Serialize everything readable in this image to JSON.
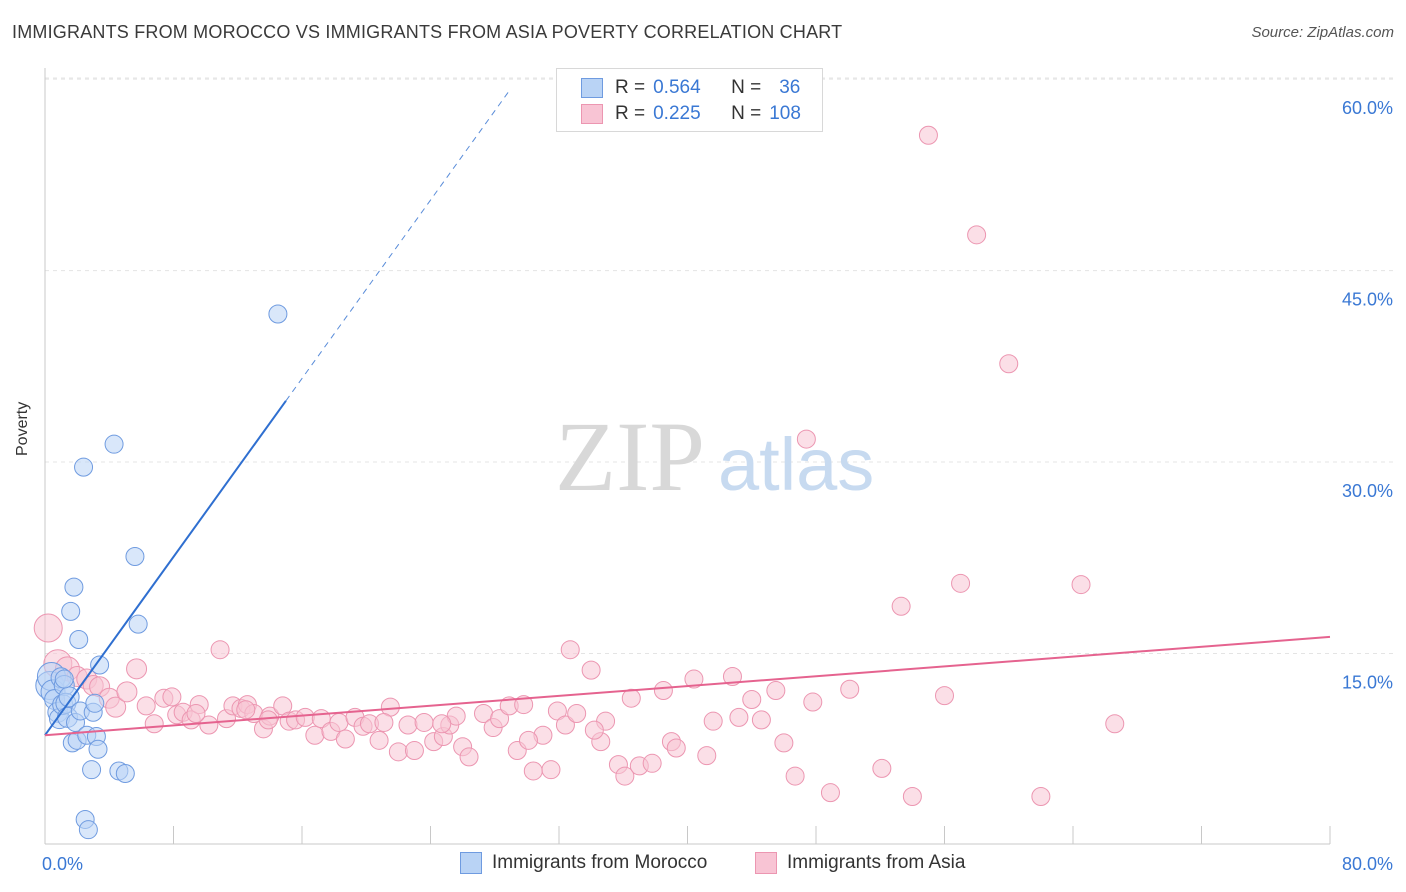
{
  "title": "IMMIGRANTS FROM MOROCCO VS IMMIGRANTS FROM ASIA POVERTY CORRELATION CHART",
  "source": "Source: ZipAtlas.com",
  "watermark": {
    "zip": "ZIP",
    "atlas": "atlas"
  },
  "legend": {
    "morocco": {
      "r_label": "R =",
      "r_value": "0.564",
      "n_label": "N =",
      "n_value": "36"
    },
    "asia": {
      "r_label": "R =",
      "r_value": "0.225",
      "n_label": "N =",
      "n_value": "108"
    }
  },
  "bottom_legend": {
    "morocco": "Immigrants from Morocco",
    "asia": "Immigrants from Asia"
  },
  "colors": {
    "morocco_fill": "#b9d3f5",
    "morocco_stroke": "#6f9be0",
    "morocco_line": "#2f6fd0",
    "asia_fill": "#f8c4d4",
    "asia_stroke": "#ec96b1",
    "asia_line": "#e5638f",
    "tick_text": "#3a78d4",
    "grid": "#e4e4e4"
  },
  "chart_data": {
    "type": "scatter",
    "title": "IMMIGRANTS FROM MOROCCO VS IMMIGRANTS FROM ASIA POVERTY CORRELATION CHART",
    "xlabel": "",
    "ylabel": "Poverty",
    "xlim": [
      0,
      80
    ],
    "ylim": [
      0,
      63
    ],
    "x_tick_labels": {
      "0": "0.0%",
      "80": "80.0%"
    },
    "y_ticks": [
      15,
      30,
      45,
      60
    ],
    "y_tick_labels": [
      "15.0%",
      "30.0%",
      "45.0%",
      "60.0%"
    ],
    "grid": true,
    "legend_position": "top-center",
    "series": [
      {
        "name": "Immigrants from Morocco",
        "R": 0.564,
        "N": 36,
        "trend": {
          "x0": 0.0,
          "y0": 8.6,
          "x1": 15.0,
          "y1": 34.8,
          "dash_to_x": 29.0
        },
        "points": [
          [
            0.3,
            12.5,
            14
          ],
          [
            0.4,
            13.2,
            14
          ],
          [
            0.5,
            12.0,
            12
          ],
          [
            0.6,
            11.4,
            10
          ],
          [
            0.8,
            10.4,
            10
          ],
          [
            0.9,
            9.9,
            10
          ],
          [
            1.0,
            13.1,
            10
          ],
          [
            1.1,
            11.0,
            10
          ],
          [
            1.2,
            12.5,
            10
          ],
          [
            1.3,
            11.1,
            10
          ],
          [
            1.4,
            10.0,
            10
          ],
          [
            1.5,
            11.6,
            10
          ],
          [
            1.6,
            18.3,
            9
          ],
          [
            1.7,
            8.0,
            9
          ],
          [
            1.8,
            20.2,
            9
          ],
          [
            1.9,
            9.6,
            9
          ],
          [
            2.0,
            8.2,
            9
          ],
          [
            2.1,
            16.1,
            9
          ],
          [
            2.2,
            10.5,
            9
          ],
          [
            2.5,
            2.0,
            9
          ],
          [
            2.4,
            29.6,
            9
          ],
          [
            2.6,
            8.6,
            9
          ],
          [
            2.7,
            1.2,
            9
          ],
          [
            2.9,
            5.9,
            9
          ],
          [
            3.0,
            10.4,
            9
          ],
          [
            3.2,
            8.5,
            9
          ],
          [
            3.3,
            7.5,
            9
          ],
          [
            3.4,
            14.1,
            9
          ],
          [
            3.1,
            11.1,
            9
          ],
          [
            4.3,
            31.4,
            9
          ],
          [
            4.6,
            5.8,
            9
          ],
          [
            5.0,
            5.6,
            9
          ],
          [
            5.6,
            22.6,
            9
          ],
          [
            5.8,
            17.3,
            9
          ],
          [
            14.5,
            41.6,
            9
          ],
          [
            1.2,
            13.0,
            9
          ]
        ]
      },
      {
        "name": "Immigrants from Asia",
        "R": 0.225,
        "N": 108,
        "trend": {
          "x0": 0.0,
          "y0": 8.6,
          "x1": 80.0,
          "y1": 16.3
        },
        "points": [
          [
            0.2,
            17.0,
            14
          ],
          [
            0.8,
            14.2,
            14
          ],
          [
            1.4,
            13.8,
            12
          ],
          [
            2.0,
            13.2,
            10
          ],
          [
            2.6,
            13.0,
            10
          ],
          [
            3.0,
            12.5,
            10
          ],
          [
            3.4,
            12.4,
            10
          ],
          [
            4.0,
            11.5,
            10
          ],
          [
            4.4,
            10.8,
            10
          ],
          [
            5.1,
            12.0,
            10
          ],
          [
            5.7,
            13.8,
            10
          ],
          [
            6.3,
            10.9,
            9
          ],
          [
            6.8,
            9.5,
            9
          ],
          [
            7.4,
            11.5,
            9
          ],
          [
            7.9,
            11.6,
            9
          ],
          [
            8.2,
            10.2,
            9
          ],
          [
            8.6,
            10.4,
            9
          ],
          [
            9.1,
            9.8,
            9
          ],
          [
            9.6,
            11.0,
            9
          ],
          [
            10.2,
            9.4,
            9
          ],
          [
            10.9,
            15.3,
            9
          ],
          [
            11.3,
            9.9,
            9
          ],
          [
            11.7,
            10.9,
            9
          ],
          [
            12.2,
            10.7,
            9
          ],
          [
            12.6,
            11.0,
            9
          ],
          [
            13.0,
            10.3,
            9
          ],
          [
            13.6,
            9.1,
            9
          ],
          [
            14.0,
            10.1,
            9
          ],
          [
            14.8,
            10.9,
            9
          ],
          [
            15.2,
            9.7,
            9
          ],
          [
            15.6,
            9.8,
            9
          ],
          [
            16.2,
            10.0,
            9
          ],
          [
            16.8,
            8.6,
            9
          ],
          [
            17.2,
            9.9,
            9
          ],
          [
            17.8,
            8.9,
            9
          ],
          [
            18.3,
            9.6,
            9
          ],
          [
            18.7,
            8.3,
            9
          ],
          [
            19.3,
            10.0,
            9
          ],
          [
            19.8,
            9.3,
            9
          ],
          [
            20.2,
            9.5,
            9
          ],
          [
            20.8,
            8.2,
            9
          ],
          [
            21.5,
            10.8,
            9
          ],
          [
            22.0,
            7.3,
            9
          ],
          [
            22.6,
            9.4,
            9
          ],
          [
            23.0,
            7.4,
            9
          ],
          [
            23.6,
            9.6,
            9
          ],
          [
            24.2,
            8.1,
            9
          ],
          [
            24.8,
            8.5,
            9
          ],
          [
            25.2,
            9.4,
            9
          ],
          [
            25.6,
            10.1,
            9
          ],
          [
            26.0,
            7.7,
            9
          ],
          [
            26.4,
            6.9,
            9
          ],
          [
            27.3,
            10.3,
            9
          ],
          [
            27.9,
            9.2,
            9
          ],
          [
            28.3,
            9.9,
            9
          ],
          [
            28.9,
            10.9,
            9
          ],
          [
            29.4,
            7.4,
            9
          ],
          [
            29.8,
            11.0,
            9
          ],
          [
            30.4,
            5.8,
            9
          ],
          [
            31.0,
            8.6,
            9
          ],
          [
            31.5,
            5.9,
            9
          ],
          [
            31.9,
            10.5,
            9
          ],
          [
            32.4,
            9.4,
            9
          ],
          [
            32.7,
            15.3,
            9
          ],
          [
            33.1,
            10.3,
            9
          ],
          [
            34.0,
            13.7,
            9
          ],
          [
            34.6,
            8.1,
            9
          ],
          [
            34.9,
            9.7,
            9
          ],
          [
            35.7,
            6.3,
            9
          ],
          [
            36.1,
            5.4,
            9
          ],
          [
            36.5,
            11.5,
            9
          ],
          [
            37.0,
            6.2,
            9
          ],
          [
            37.8,
            6.4,
            9
          ],
          [
            38.5,
            12.1,
            9
          ],
          [
            39.0,
            8.1,
            9
          ],
          [
            39.3,
            7.6,
            9
          ],
          [
            40.4,
            13.0,
            9
          ],
          [
            41.2,
            7.0,
            9
          ],
          [
            41.6,
            9.7,
            9
          ],
          [
            42.8,
            13.2,
            9
          ],
          [
            43.2,
            10.0,
            9
          ],
          [
            44.0,
            11.4,
            9
          ],
          [
            44.6,
            9.8,
            9
          ],
          [
            45.5,
            12.1,
            9
          ],
          [
            46.0,
            8.0,
            9
          ],
          [
            46.7,
            5.4,
            9
          ],
          [
            47.8,
            11.2,
            9
          ],
          [
            47.4,
            31.8,
            9
          ],
          [
            48.9,
            4.1,
            9
          ],
          [
            50.1,
            12.2,
            9
          ],
          [
            52.1,
            6.0,
            9
          ],
          [
            53.3,
            18.7,
            9
          ],
          [
            54.0,
            3.8,
            9
          ],
          [
            55.0,
            55.6,
            9
          ],
          [
            56.0,
            11.7,
            9
          ],
          [
            57.0,
            20.5,
            9
          ],
          [
            58.0,
            47.8,
            9
          ],
          [
            60.0,
            37.7,
            9
          ],
          [
            62.0,
            3.8,
            9
          ],
          [
            64.5,
            20.4,
            9
          ],
          [
            66.6,
            9.5,
            9
          ],
          [
            24.7,
            9.5,
            9
          ],
          [
            30.1,
            8.2,
            9
          ],
          [
            34.2,
            9.0,
            9
          ],
          [
            21.1,
            9.6,
            9
          ],
          [
            13.9,
            9.8,
            9
          ],
          [
            12.5,
            10.6,
            9
          ],
          [
            9.4,
            10.3,
            9
          ]
        ]
      }
    ]
  }
}
